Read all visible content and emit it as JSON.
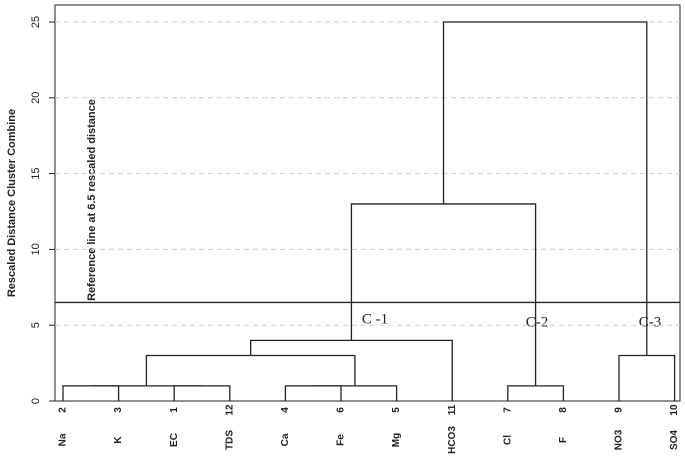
{
  "chart_data": {
    "type": "dendrogram",
    "ylabel": "Rescaled Distance Cluster Combine",
    "ylim": [
      0,
      25
    ],
    "yticks": [
      0,
      5,
      10,
      15,
      20,
      25
    ],
    "grid": true,
    "leaves": [
      "Na",
      "K",
      "EC",
      "TDS",
      "Ca",
      "Fe",
      "Mg",
      "HCO3",
      "Cl",
      "F",
      "NO3",
      "SO4"
    ],
    "leaf_numbers": [
      "2",
      "3",
      "1",
      "12",
      "4",
      "6",
      "5",
      "11",
      "7",
      "8",
      "9",
      "10"
    ],
    "merges": [
      {
        "children": [
          0,
          1
        ],
        "height": 1
      },
      {
        "children": [
          2,
          3
        ],
        "height": 1
      },
      {
        "children": [
          12,
          13
        ],
        "height": 1
      },
      {
        "children": [
          4,
          5
        ],
        "height": 1
      },
      {
        "children": [
          15,
          6
        ],
        "height": 1
      },
      {
        "children": [
          14,
          16
        ],
        "height": 3
      },
      {
        "children": [
          17,
          7
        ],
        "height": 4
      },
      {
        "children": [
          8,
          9
        ],
        "height": 1
      },
      {
        "children": [
          18,
          19
        ],
        "height": 13
      },
      {
        "children": [
          10,
          11
        ],
        "height": 3
      },
      {
        "children": [
          20,
          21
        ],
        "height": 25
      }
    ],
    "reference_line": 6.5,
    "reference_label": "Reference line at 6.5 rescaled distance",
    "cluster_labels": [
      "C -1",
      "C-2",
      "C-3"
    ]
  }
}
